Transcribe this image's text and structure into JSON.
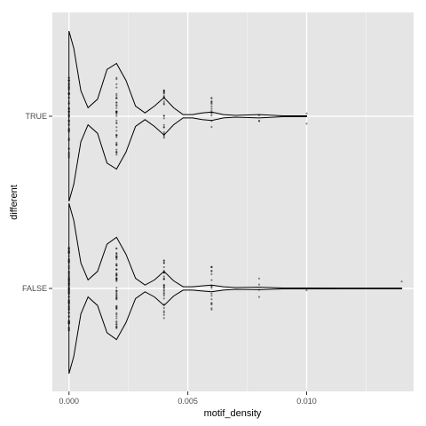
{
  "chart_data": {
    "type": "violin",
    "title": "",
    "xlabel": "motif_density",
    "ylabel": "different",
    "xlim": [
      -0.0007,
      0.0145
    ],
    "x_ticks": [
      0.0,
      0.005,
      0.01
    ],
    "x_tick_labels": [
      "0.000",
      "0.005",
      "0.010"
    ],
    "categories": [
      "TRUE",
      "FALSE"
    ],
    "grid": true,
    "legend": "none",
    "colors": {
      "panel": "#e5e5e5",
      "grid_major": "#ffffff",
      "grid_minor": "#f2f2f2",
      "violin_line": "#000000",
      "point": "#000000"
    },
    "series": [
      {
        "name": "TRUE",
        "max": 0.01,
        "density": [
          [
            0.0,
            1.0
          ],
          [
            0.0002,
            0.8
          ],
          [
            0.0005,
            0.3
          ],
          [
            0.0008,
            0.1
          ],
          [
            0.0012,
            0.2
          ],
          [
            0.0016,
            0.55
          ],
          [
            0.002,
            0.62
          ],
          [
            0.0024,
            0.42
          ],
          [
            0.0028,
            0.12
          ],
          [
            0.0032,
            0.04
          ],
          [
            0.0036,
            0.12
          ],
          [
            0.004,
            0.22
          ],
          [
            0.0044,
            0.1
          ],
          [
            0.0048,
            0.02
          ],
          [
            0.0052,
            0.02
          ],
          [
            0.0056,
            0.04
          ],
          [
            0.006,
            0.05
          ],
          [
            0.0065,
            0.02
          ],
          [
            0.007,
            0.01
          ],
          [
            0.008,
            0.02
          ],
          [
            0.009,
            0.005
          ],
          [
            0.01,
            0.005
          ]
        ],
        "points": [
          {
            "x": 0.0,
            "n": 60
          },
          {
            "x": 0.002,
            "n": 40
          },
          {
            "x": 0.004,
            "n": 25
          },
          {
            "x": 0.006,
            "n": 14
          },
          {
            "x": 0.008,
            "n": 3
          },
          {
            "x": 0.01,
            "n": 2
          }
        ]
      },
      {
        "name": "FALSE",
        "max": 0.014,
        "density": [
          [
            0.0,
            1.0
          ],
          [
            0.0002,
            0.8
          ],
          [
            0.0005,
            0.3
          ],
          [
            0.0008,
            0.1
          ],
          [
            0.0012,
            0.2
          ],
          [
            0.0016,
            0.52
          ],
          [
            0.002,
            0.6
          ],
          [
            0.0024,
            0.4
          ],
          [
            0.0028,
            0.12
          ],
          [
            0.0032,
            0.04
          ],
          [
            0.0036,
            0.1
          ],
          [
            0.004,
            0.2
          ],
          [
            0.0044,
            0.09
          ],
          [
            0.0048,
            0.02
          ],
          [
            0.0052,
            0.02
          ],
          [
            0.0056,
            0.03
          ],
          [
            0.006,
            0.04
          ],
          [
            0.0065,
            0.02
          ],
          [
            0.007,
            0.01
          ],
          [
            0.008,
            0.015
          ],
          [
            0.009,
            0.005
          ],
          [
            0.01,
            0.005
          ],
          [
            0.012,
            0.004
          ],
          [
            0.014,
            0.004
          ]
        ],
        "points": [
          {
            "x": 0.0,
            "n": 90
          },
          {
            "x": 0.002,
            "n": 60
          },
          {
            "x": 0.004,
            "n": 30
          },
          {
            "x": 0.006,
            "n": 18
          },
          {
            "x": 0.008,
            "n": 4
          },
          {
            "x": 0.01,
            "n": 1
          },
          {
            "x": 0.014,
            "n": 1
          }
        ]
      }
    ]
  }
}
